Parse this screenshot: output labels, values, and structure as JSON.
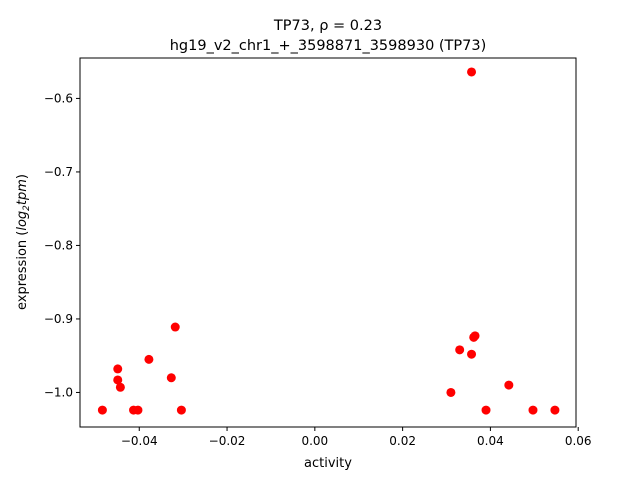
{
  "chart_data": {
    "type": "scatter",
    "title_line1": "TP73, ρ = 0.23",
    "title_line2": "hg19_v2_chr1_+_3598871_3598930 (TP73)",
    "xlabel": "activity",
    "ylabel_prefix": "expression (",
    "ylabel_log": "log",
    "ylabel_sub": "2",
    "ylabel_tpm": "tpm",
    "ylabel_suffix": ")",
    "xlim": [
      -0.0535,
      0.0595
    ],
    "ylim": [
      -1.047,
      -0.545
    ],
    "x_ticks": [
      -0.04,
      -0.02,
      0.0,
      0.02,
      0.04,
      0.06
    ],
    "x_tick_labels": [
      "−0.04",
      "−0.02",
      "0.00",
      "0.02",
      "0.04",
      "0.06"
    ],
    "y_ticks": [
      -0.6,
      -0.7,
      -0.8,
      -0.9,
      -1.0
    ],
    "y_tick_labels": [
      "−0.6",
      "−0.7",
      "−0.8",
      "−0.9",
      "−1.0"
    ],
    "grid": false,
    "marker_color": "#ff0000",
    "points": [
      {
        "x": -0.0484,
        "y": -1.024
      },
      {
        "x": -0.0449,
        "y": -0.968
      },
      {
        "x": -0.0449,
        "y": -0.983
      },
      {
        "x": -0.0443,
        "y": -0.993
      },
      {
        "x": -0.0413,
        "y": -1.024
      },
      {
        "x": -0.0403,
        "y": -1.024
      },
      {
        "x": -0.0378,
        "y": -0.955
      },
      {
        "x": -0.0327,
        "y": -0.98
      },
      {
        "x": -0.0318,
        "y": -0.911
      },
      {
        "x": -0.0304,
        "y": -1.024
      },
      {
        "x": 0.031,
        "y": -1.0
      },
      {
        "x": 0.033,
        "y": -0.942
      },
      {
        "x": 0.0357,
        "y": -0.948
      },
      {
        "x": 0.0357,
        "y": -0.564
      },
      {
        "x": 0.0362,
        "y": -0.925
      },
      {
        "x": 0.0365,
        "y": -0.923
      },
      {
        "x": 0.039,
        "y": -1.024
      },
      {
        "x": 0.0442,
        "y": -0.99
      },
      {
        "x": 0.0497,
        "y": -1.024
      },
      {
        "x": 0.0547,
        "y": -1.024
      }
    ]
  }
}
